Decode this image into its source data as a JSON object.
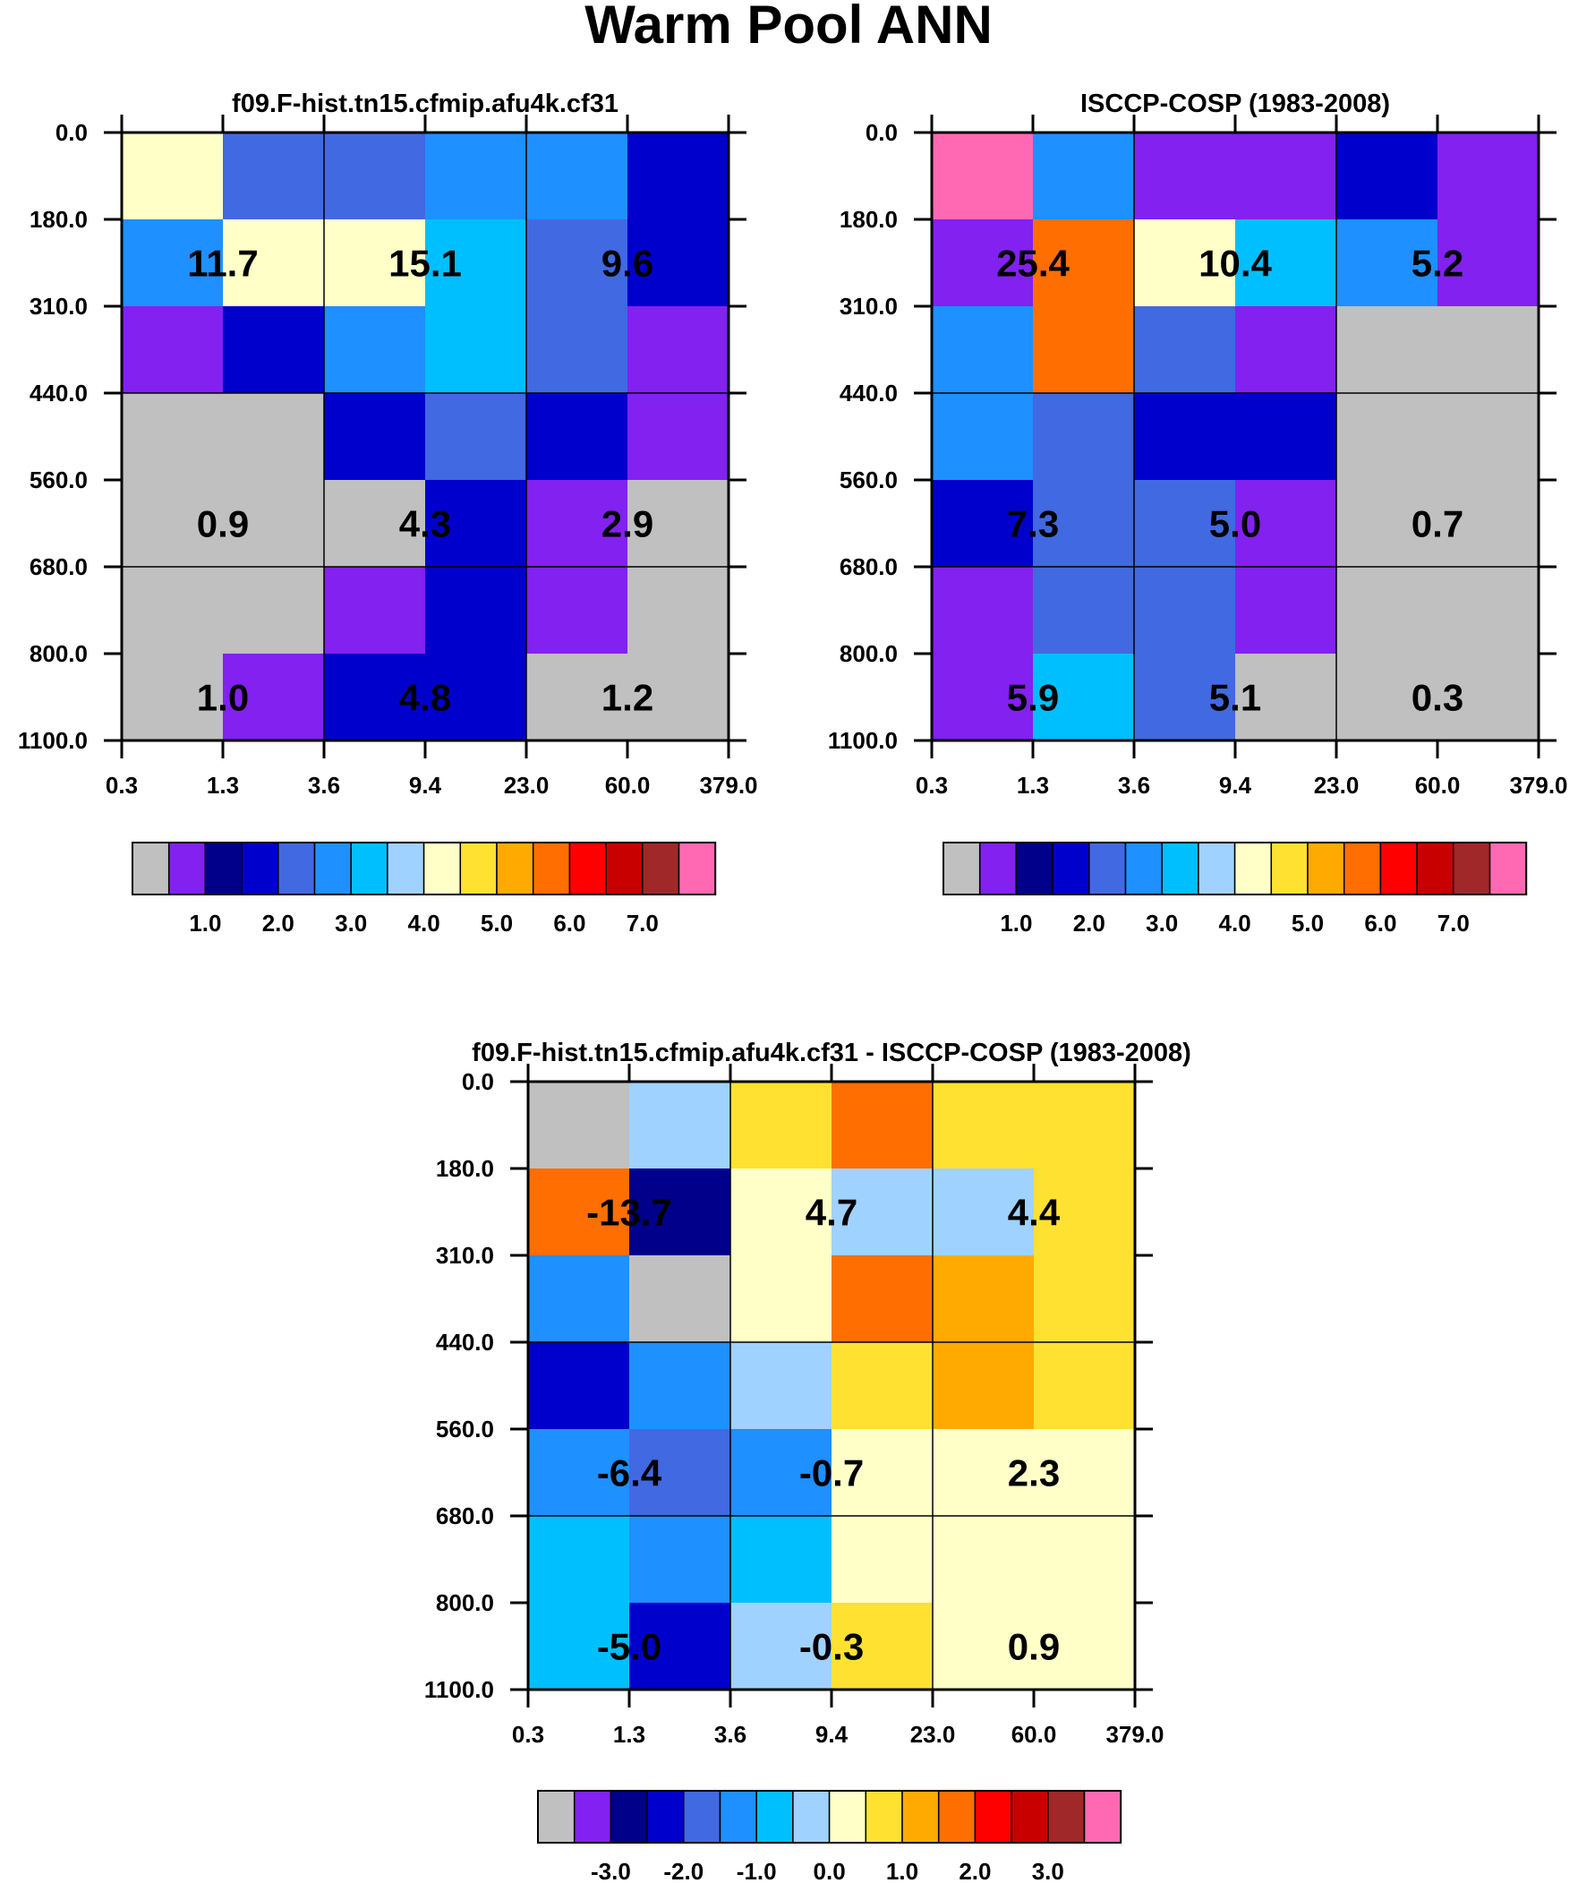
{
  "figure_title": "Warm Pool ANN",
  "chart_data": [
    {
      "type": "heatmap",
      "title": "f09.F-hist.tn15.cfmip.afu4k.cf31",
      "x_ticks": [
        "0.3",
        "1.3",
        "3.6",
        "9.4",
        "23.0",
        "60.0",
        "379.0"
      ],
      "y_ticks": [
        "0.0",
        "180.0",
        "310.0",
        "440.0",
        "560.0",
        "680.0",
        "800.0",
        "1100.0"
      ],
      "cells": [
        [
          8,
          4,
          4,
          5,
          5,
          3
        ],
        [
          5,
          8,
          8,
          6,
          4,
          3
        ],
        [
          1,
          3,
          5,
          6,
          4,
          1
        ],
        [
          0,
          0,
          3,
          4,
          3,
          1
        ],
        [
          0,
          0,
          0,
          3,
          1,
          0
        ],
        [
          0,
          0,
          1,
          3,
          1,
          0
        ],
        [
          0,
          1,
          3,
          3,
          0,
          0
        ]
      ],
      "group_labels": [
        [
          "11.7",
          "15.1",
          "9.6"
        ],
        [
          "0.9",
          "4.3",
          "2.9"
        ],
        [
          "1.0",
          "4.8",
          "1.2"
        ]
      ],
      "colorbar_labels": [
        "1.0",
        "2.0",
        "3.0",
        "4.0",
        "5.0",
        "6.0",
        "7.0"
      ]
    },
    {
      "type": "heatmap",
      "title": "ISCCP-COSP (1983-2008)",
      "x_ticks": [
        "0.3",
        "1.3",
        "3.6",
        "9.4",
        "23.0",
        "60.0",
        "379.0"
      ],
      "y_ticks": [
        "0.0",
        "180.0",
        "310.0",
        "440.0",
        "560.0",
        "680.0",
        "800.0",
        "1100.0"
      ],
      "cells": [
        [
          15,
          5,
          1,
          1,
          3,
          1
        ],
        [
          1,
          11,
          8,
          6,
          5,
          1
        ],
        [
          5,
          11,
          4,
          1,
          0,
          0
        ],
        [
          5,
          4,
          3,
          3,
          0,
          0
        ],
        [
          3,
          4,
          4,
          1,
          0,
          0
        ],
        [
          1,
          4,
          4,
          1,
          0,
          0
        ],
        [
          1,
          6,
          4,
          0,
          0,
          0
        ]
      ],
      "group_labels": [
        [
          "25.4",
          "10.4",
          "5.2"
        ],
        [
          "7.3",
          "5.0",
          "0.7"
        ],
        [
          "5.9",
          "5.1",
          "0.3"
        ]
      ],
      "colorbar_labels": [
        "1.0",
        "2.0",
        "3.0",
        "4.0",
        "5.0",
        "6.0",
        "7.0"
      ]
    },
    {
      "type": "heatmap",
      "title": "f09.F-hist.tn15.cfmip.afu4k.cf31 - ISCCP-COSP (1983-2008)",
      "x_ticks": [
        "0.3",
        "1.3",
        "3.6",
        "9.4",
        "23.0",
        "60.0",
        "379.0"
      ],
      "y_ticks": [
        "0.0",
        "180.0",
        "310.0",
        "440.0",
        "560.0",
        "680.0",
        "800.0",
        "1100.0"
      ],
      "cells": [
        [
          0,
          7,
          9,
          11,
          9,
          9
        ],
        [
          11,
          2,
          8,
          7,
          7,
          9
        ],
        [
          5,
          0,
          8,
          11,
          10,
          9
        ],
        [
          3,
          5,
          7,
          9,
          10,
          9
        ],
        [
          5,
          4,
          5,
          8,
          8,
          8
        ],
        [
          6,
          5,
          6,
          8,
          8,
          8
        ],
        [
          6,
          3,
          7,
          9,
          8,
          8
        ]
      ],
      "group_labels": [
        [
          "-13.7",
          "4.7",
          "4.4"
        ],
        [
          "-6.4",
          "-0.7",
          "2.3"
        ],
        [
          "-5.0",
          "-0.3",
          "0.9"
        ]
      ],
      "colorbar_labels": [
        "-3.0",
        "-2.0",
        "-1.0",
        "0.0",
        "1.0",
        "2.0",
        "3.0"
      ]
    }
  ],
  "palette": [
    "#c0c0c0",
    "#8221f0",
    "#00008b",
    "#0000cd",
    "#4169e1",
    "#1e90ff",
    "#00bfff",
    "#a0d2ff",
    "#ffffc8",
    "#ffe132",
    "#ffaa00",
    "#ff6e00",
    "#ff0000",
    "#c80000",
    "#a02828",
    "#ff69b4"
  ]
}
